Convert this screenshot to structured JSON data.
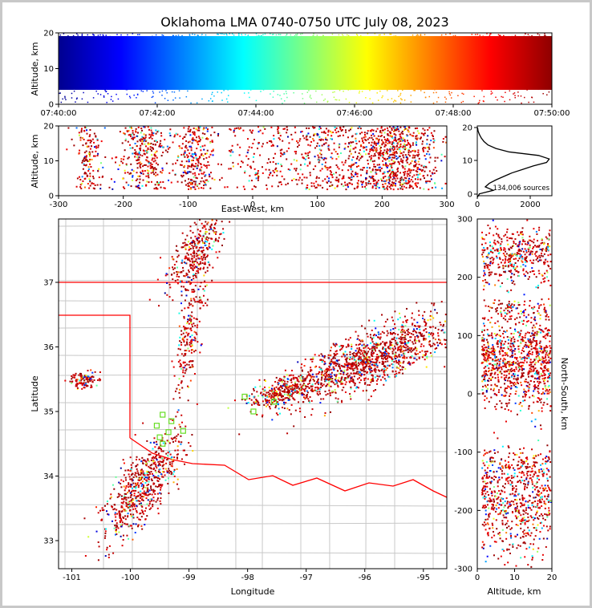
{
  "title": "Oklahoma LMA 0740-0750 UTC July 08, 2023",
  "panels": {
    "time_height": {
      "ylabel": "Altitude, km",
      "xticks": [
        "07:40:00",
        "07:42:00",
        "07:44:00",
        "07:46:00",
        "07:48:00",
        "07:50:00"
      ],
      "yticks": [
        "0",
        "10",
        "20"
      ]
    },
    "ew_height": {
      "ylabel": "Altitude, km",
      "xlabel": "East-West, km",
      "xticks": [
        "-300",
        "-200",
        "-100",
        "0",
        "100",
        "200",
        "300"
      ],
      "yticks": [
        "0",
        "10",
        "20"
      ]
    },
    "histogram": {
      "annotation": "134,006 sources",
      "xticks": [
        "0",
        "2000"
      ],
      "yticks": [
        "0",
        "10",
        "20"
      ]
    },
    "plan": {
      "xlabel": "Longitude",
      "ylabel": "Latitude",
      "xticks": [
        "-101",
        "-100",
        "-99",
        "-98",
        "-97",
        "-96",
        "-95"
      ],
      "yticks": [
        "33",
        "34",
        "35",
        "36",
        "37"
      ]
    },
    "ns_height": {
      "xlabel": "Altitude, km",
      "ylabel": "North-South, km",
      "xticks": [
        "0",
        "10",
        "20"
      ],
      "yticks": [
        "300",
        "200",
        "100",
        "0",
        "-100",
        "-200",
        "-300"
      ]
    }
  },
  "colors": {
    "state_border": "#ff0000",
    "county_lines": "#c8c8c8",
    "station_marker": "#66dd22",
    "colormap": [
      "#00008f",
      "#0000ff",
      "#00ffff",
      "#7fff7f",
      "#ffff00",
      "#ff0000",
      "#8f0000"
    ]
  },
  "chart_data": {
    "type": "scatter",
    "title": "Oklahoma LMA 0740-0750 UTC July 08, 2023",
    "total_sources": 134006,
    "color_by": "time",
    "time_range": [
      "07:40:00",
      "07:50:00"
    ],
    "altitude_km_range": [
      0,
      20
    ],
    "ew_km_range": [
      -300,
      300
    ],
    "ns_km_range": [
      -300,
      300
    ],
    "lon_range": [
      -101.2,
      -94.6
    ],
    "lat_range": [
      32.6,
      37.95
    ],
    "source_clusters": [
      {
        "lon": -98.9,
        "lat": 37.5,
        "alt_km": 9,
        "weight": 0.12
      },
      {
        "lon": -96.0,
        "lat": 35.8,
        "alt_km": 10,
        "weight": 0.45
      },
      {
        "lon": -97.4,
        "lat": 35.3,
        "alt_km": 7,
        "weight": 0.1
      },
      {
        "lon": -99.85,
        "lat": 33.8,
        "alt_km": 8,
        "weight": 0.22
      },
      {
        "lon": -100.8,
        "lat": 35.5,
        "alt_km": 8,
        "weight": 0.04
      },
      {
        "lon": -99.0,
        "lat": 36.2,
        "alt_km": 9,
        "weight": 0.07
      }
    ],
    "altitude_histogram": {
      "alt_km": [
        0,
        1,
        2,
        3,
        4,
        5,
        6,
        7,
        8,
        9,
        10,
        11,
        12,
        13,
        14,
        15,
        16,
        17,
        18,
        19,
        20
      ],
      "count": [
        0,
        80,
        600,
        300,
        450,
        700,
        1000,
        1300,
        1700,
        2100,
        2600,
        2700,
        2300,
        1200,
        700,
        400,
        250,
        150,
        80,
        30,
        10
      ]
    },
    "stations": [
      {
        "lon": -99.45,
        "lat": 34.95
      },
      {
        "lon": -99.55,
        "lat": 34.78
      },
      {
        "lon": -99.35,
        "lat": 34.68
      },
      {
        "lon": -99.1,
        "lat": 34.7
      },
      {
        "lon": -99.5,
        "lat": 34.6
      },
      {
        "lon": -99.45,
        "lat": 34.5
      },
      {
        "lon": -99.3,
        "lat": 34.85
      },
      {
        "lon": -98.05,
        "lat": 35.23
      },
      {
        "lon": -97.9,
        "lat": 35.0
      },
      {
        "lon": -97.55,
        "lat": 35.15
      }
    ]
  }
}
